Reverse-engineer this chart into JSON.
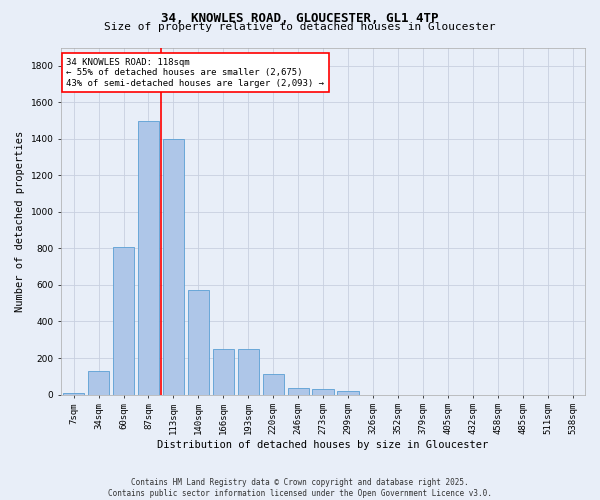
{
  "title_line1": "34, KNOWLES ROAD, GLOUCESTER, GL1 4TP",
  "title_line2": "Size of property relative to detached houses in Gloucester",
  "xlabel": "Distribution of detached houses by size in Gloucester",
  "ylabel": "Number of detached properties",
  "categories": [
    "7sqm",
    "34sqm",
    "60sqm",
    "87sqm",
    "113sqm",
    "140sqm",
    "166sqm",
    "193sqm",
    "220sqm",
    "246sqm",
    "273sqm",
    "299sqm",
    "326sqm",
    "352sqm",
    "379sqm",
    "405sqm",
    "432sqm",
    "458sqm",
    "485sqm",
    "511sqm",
    "538sqm"
  ],
  "values": [
    10,
    130,
    810,
    1500,
    1400,
    575,
    250,
    250,
    115,
    35,
    30,
    20,
    0,
    0,
    0,
    0,
    0,
    0,
    0,
    0,
    0
  ],
  "ylim": [
    0,
    1900
  ],
  "yticks": [
    0,
    200,
    400,
    600,
    800,
    1000,
    1200,
    1400,
    1600,
    1800
  ],
  "bar_color": "#aec6e8",
  "bar_edge_color": "#5a9fd4",
  "vline_x_idx": 4,
  "vline_color": "red",
  "annotation_text": "34 KNOWLES ROAD: 118sqm\n← 55% of detached houses are smaller (2,675)\n43% of semi-detached houses are larger (2,093) →",
  "annotation_box_color": "white",
  "annotation_box_edge_color": "red",
  "footer_line1": "Contains HM Land Registry data © Crown copyright and database right 2025.",
  "footer_line2": "Contains public sector information licensed under the Open Government Licence v3.0.",
  "background_color": "#e8eef8",
  "grid_color": "#c8d0e0",
  "title1_fontsize": 9,
  "title2_fontsize": 8,
  "ylabel_fontsize": 7.5,
  "xlabel_fontsize": 7.5,
  "tick_fontsize": 6.5,
  "annot_fontsize": 6.5,
  "footer_fontsize": 5.5
}
